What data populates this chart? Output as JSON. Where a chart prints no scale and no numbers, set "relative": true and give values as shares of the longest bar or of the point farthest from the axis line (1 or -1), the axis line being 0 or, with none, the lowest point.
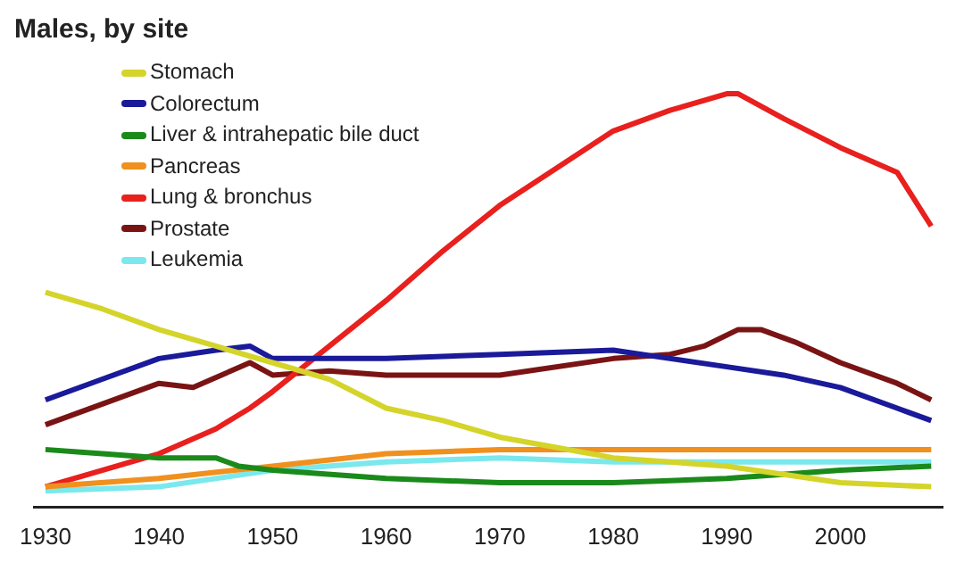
{
  "chart_data": {
    "type": "line",
    "title": "Males, by site",
    "relative": true,
    "legend": "top left",
    "grid": false,
    "marker": "none",
    "line_style": "solid",
    "xlim": [
      1929,
      2009
    ],
    "xticks": [
      1930,
      1940,
      1950,
      1960,
      1970,
      1980,
      1990,
      2000
    ],
    "series": [
      {
        "name": "Stomach",
        "color": "#d4d42a",
        "x": [
          1930,
          1935,
          1940,
          1945,
          1950,
          1955,
          1960,
          1965,
          1970,
          1980,
          1990,
          2000,
          2008
        ],
        "values": [
          0.52,
          0.48,
          0.43,
          0.39,
          0.35,
          0.31,
          0.24,
          0.21,
          0.17,
          0.12,
          0.1,
          0.06,
          0.05
        ]
      },
      {
        "name": "Colorectum",
        "color": "#1a1a9a",
        "x": [
          1930,
          1935,
          1940,
          1945,
          1948,
          1950,
          1955,
          1960,
          1970,
          1980,
          1985,
          1990,
          1995,
          2000,
          2005,
          2008
        ],
        "values": [
          0.26,
          0.31,
          0.36,
          0.38,
          0.39,
          0.36,
          0.36,
          0.36,
          0.37,
          0.38,
          0.36,
          0.34,
          0.32,
          0.29,
          0.24,
          0.21
        ]
      },
      {
        "name": "Liver & intrahepatic bile duct",
        "color": "#1a8a1a",
        "x": [
          1930,
          1935,
          1940,
          1945,
          1947,
          1950,
          1960,
          1970,
          1975,
          1980,
          1990,
          2000,
          2008
        ],
        "values": [
          0.14,
          0.13,
          0.12,
          0.12,
          0.1,
          0.09,
          0.07,
          0.06,
          0.06,
          0.06,
          0.07,
          0.09,
          0.1
        ]
      },
      {
        "name": "Pancreas",
        "color": "#f0901e",
        "x": [
          1930,
          1940,
          1950,
          1960,
          1970,
          1980,
          1990,
          2000,
          2008
        ],
        "values": [
          0.05,
          0.07,
          0.1,
          0.13,
          0.14,
          0.14,
          0.14,
          0.14,
          0.14
        ]
      },
      {
        "name": "Lung & bronchus",
        "color": "#e8201e",
        "x": [
          1930,
          1935,
          1940,
          1945,
          1948,
          1950,
          1955,
          1960,
          1965,
          1970,
          1975,
          1980,
          1985,
          1990,
          1991,
          1995,
          2000,
          2005,
          2008
        ],
        "values": [
          0.05,
          0.09,
          0.13,
          0.19,
          0.24,
          0.28,
          0.39,
          0.5,
          0.62,
          0.73,
          0.82,
          0.91,
          0.96,
          1,
          1,
          0.94,
          0.87,
          0.81,
          0.68
        ]
      },
      {
        "name": "Prostate",
        "color": "#7a1414",
        "x": [
          1930,
          1935,
          1940,
          1943,
          1948,
          1950,
          1955,
          1960,
          1970,
          1980,
          1985,
          1988,
          1991,
          1993,
          1996,
          2000,
          2005,
          2008
        ],
        "values": [
          0.2,
          0.25,
          0.3,
          0.29,
          0.35,
          0.32,
          0.33,
          0.32,
          0.32,
          0.36,
          0.37,
          0.39,
          0.43,
          0.43,
          0.4,
          0.35,
          0.3,
          0.26
        ]
      },
      {
        "name": "Leukemia",
        "color": "#7ae8ec",
        "x": [
          1930,
          1940,
          1950,
          1960,
          1970,
          1980,
          1990,
          2000,
          2008
        ],
        "values": [
          0.04,
          0.05,
          0.09,
          0.11,
          0.12,
          0.11,
          0.11,
          0.11,
          0.11
        ]
      }
    ]
  }
}
